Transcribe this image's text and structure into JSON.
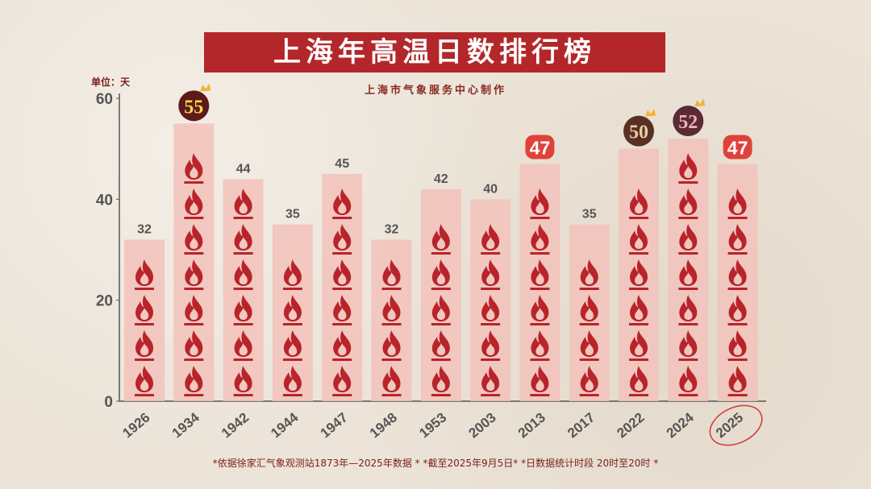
{
  "title": "上海年高温日数排行榜",
  "subtitle": "上海市气象服务中心制作",
  "unit_label": "单位：天",
  "footnote": "*依据徐家汇气象观测站1873年—2025年数据 * *截至2025年9月5日* *日数据统计时段 20时至20时 *",
  "chart_data": {
    "type": "bar",
    "categories": [
      "1926",
      "1934",
      "1942",
      "1944",
      "1947",
      "1948",
      "1953",
      "2003",
      "2013",
      "2017",
      "2022",
      "2024",
      "2025"
    ],
    "values": [
      32,
      55,
      44,
      35,
      45,
      32,
      42,
      40,
      47,
      35,
      50,
      52,
      47
    ],
    "ylim": [
      0,
      60
    ],
    "yticks": [
      "0",
      "20",
      "40",
      "60"
    ],
    "highlights": {
      "1934": {
        "style": "circle-crown",
        "bg": "#5e1a1a",
        "fg": "#f5d94a"
      },
      "2022": {
        "style": "circle-crown",
        "bg": "#5a3025",
        "fg": "#e8cfa8"
      },
      "2024": {
        "style": "circle-crown",
        "bg": "#5a2a35",
        "fg": "#f0b0c0"
      },
      "2013": {
        "style": "badge",
        "bg": "#e0413a",
        "fg": "#ffffff"
      },
      "2025": {
        "style": "badge-circled",
        "bg": "#e0413a",
        "fg": "#ffffff"
      }
    },
    "colors": {
      "bar": "#f2c2bb",
      "flame": "#b8242a",
      "label": "#555555",
      "axis": "#555555"
    }
  }
}
